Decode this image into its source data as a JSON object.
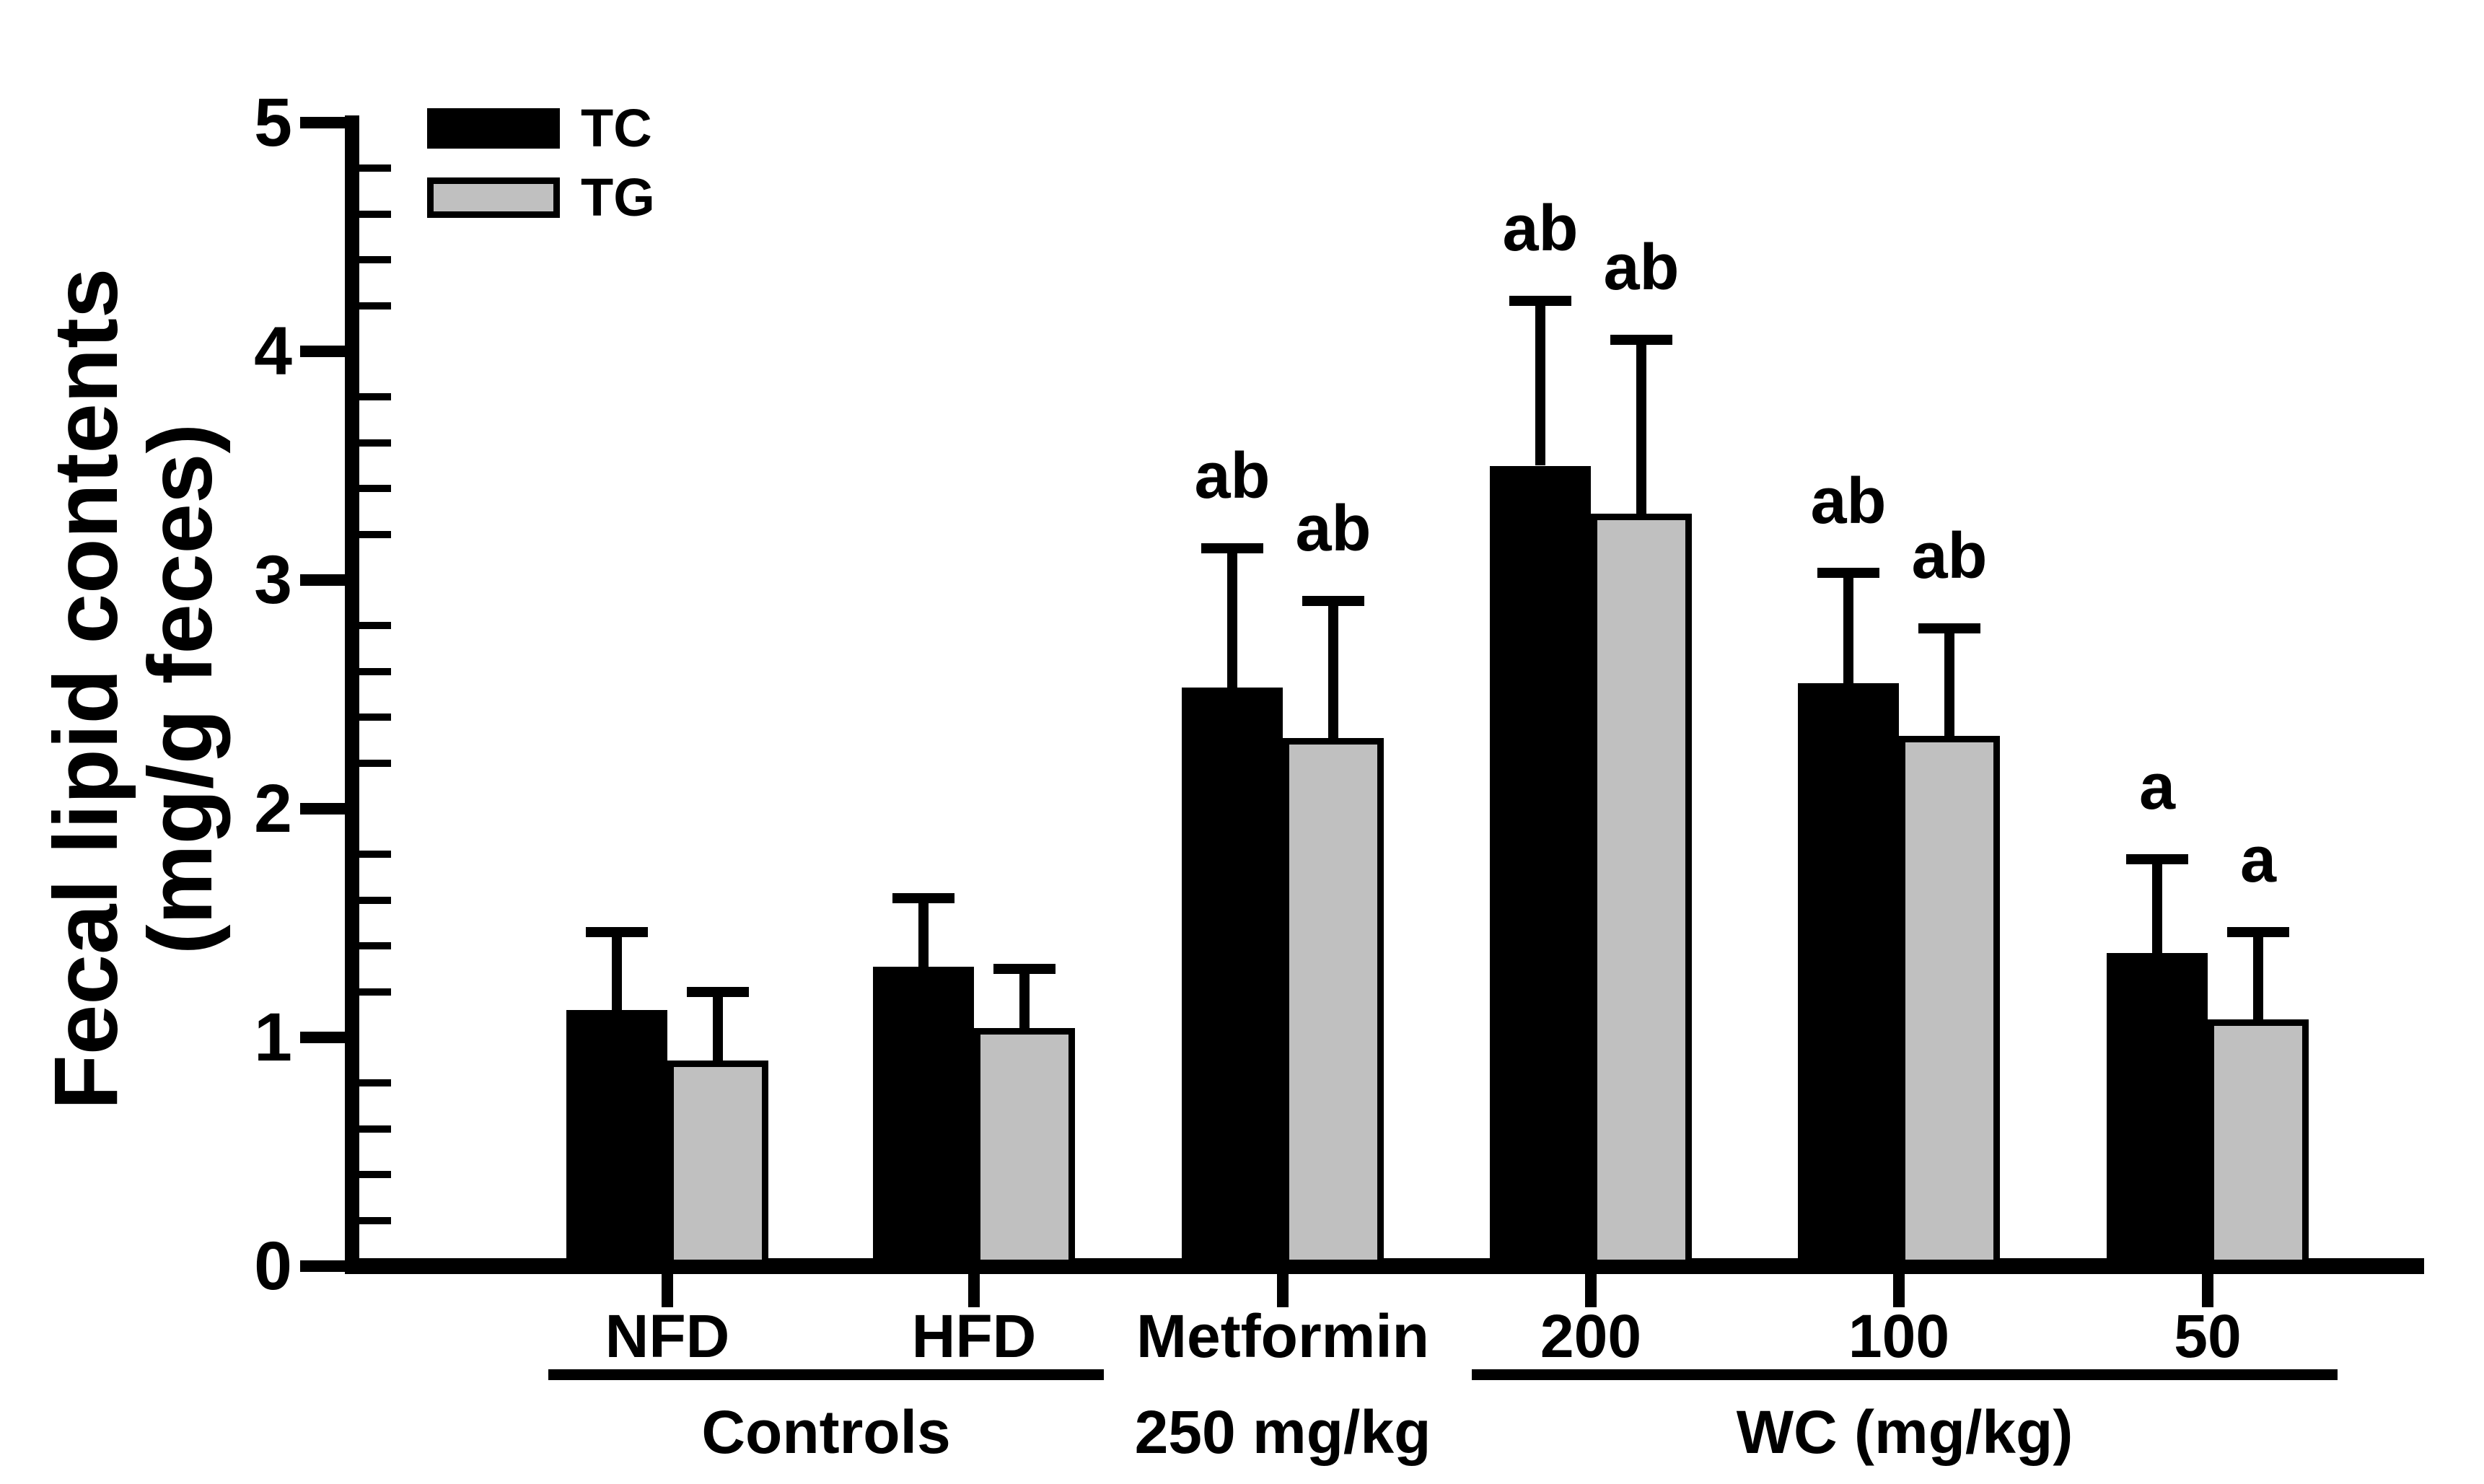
{
  "figure": {
    "background": "#ffffff",
    "axis_color": "#000000"
  },
  "chart_data": {
    "type": "bar",
    "title": "",
    "ylabel": "Fecal lipid contents (mg/g feces)",
    "ylabel_lines": [
      "Fecal lipid contents",
      "(mg/g feces)"
    ],
    "xlabel": "",
    "ylim": [
      0,
      5
    ],
    "yticks": [
      0,
      1,
      2,
      3,
      4,
      5
    ],
    "ytick_minor_step": 0.2,
    "grid": false,
    "error_bars": "upper-only",
    "legend_position": "top-left",
    "categories": [
      "NFD",
      "HFD",
      "Metformin",
      "200",
      "100",
      "50"
    ],
    "category_sublabels": [
      "",
      "",
      "250 mg/kg",
      "",
      "",
      ""
    ],
    "category_group_spans": [
      {
        "label": "Controls",
        "from_index": 0,
        "to_index": 1
      },
      {
        "label": "WC (mg/kg)",
        "from_index": 3,
        "to_index": 5
      }
    ],
    "series": [
      {
        "name": "TC",
        "color": "#000000",
        "values": [
          1.12,
          1.31,
          2.53,
          3.5,
          2.55,
          1.37
        ],
        "errors_plus": [
          0.34,
          0.3,
          0.61,
          0.72,
          0.48,
          0.41
        ],
        "annotations": [
          "",
          "",
          "ab",
          "ab",
          "ab",
          "a"
        ]
      },
      {
        "name": "TG",
        "color": "#c0c0c0",
        "values": [
          0.9,
          1.04,
          2.31,
          3.29,
          2.32,
          1.08
        ],
        "errors_plus": [
          0.3,
          0.26,
          0.6,
          0.76,
          0.47,
          0.38
        ],
        "annotations": [
          "",
          "",
          "ab",
          "ab",
          "ab",
          "a"
        ]
      }
    ]
  }
}
